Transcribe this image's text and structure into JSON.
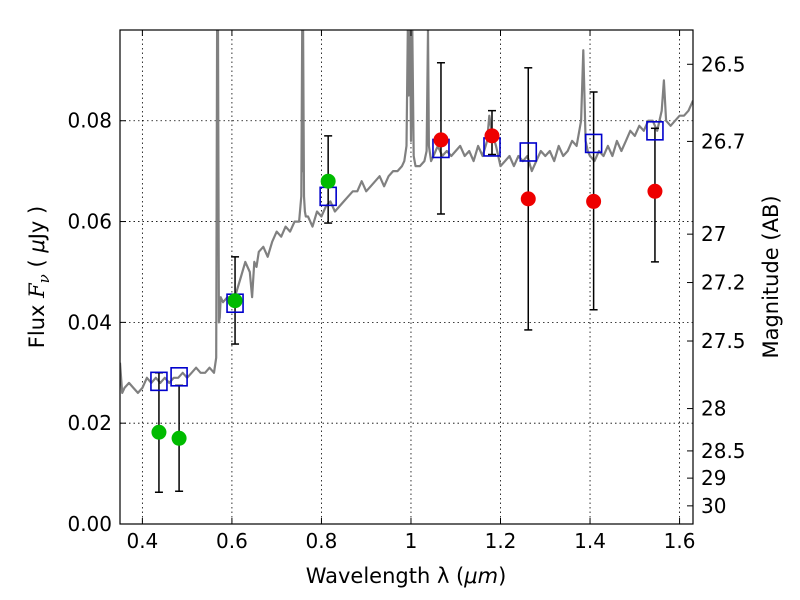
{
  "chart_data": {
    "type": "scatter",
    "xlabel_prefix": "Wavelength  λ (",
    "xlabel_unit": "μm",
    "xlabel_suffix": ")",
    "ylabel_prefix": "Flux  ",
    "ylabel_symbol": "F",
    "ylabel_sub": "ν",
    "ylabel_mid": "  ( ",
    "ylabel_mu": "μ",
    "ylabel_suffix": "Jy )",
    "y2label": "Magnitude (AB)",
    "xlim": [
      0.35,
      1.63
    ],
    "ylim": [
      0.0,
      0.098
    ],
    "xticks": [
      0.4,
      0.6,
      0.8,
      1.0,
      1.2,
      1.4,
      1.6
    ],
    "xtick_labels": [
      "0.4",
      "0.6",
      "0.8",
      "1",
      "1.2",
      "1.4",
      "1.6"
    ],
    "yticks": [
      0.0,
      0.02,
      0.04,
      0.06,
      0.08
    ],
    "ytick_labels": [
      "0.00",
      "0.02",
      "0.04",
      "0.06",
      "0.08"
    ],
    "y2ticks": [
      {
        "label": "26.5",
        "flux": 0.0912
      },
      {
        "label": "26.7",
        "flux": 0.0759
      },
      {
        "label": "27",
        "flux": 0.0575
      },
      {
        "label": "27.2",
        "flux": 0.0479
      },
      {
        "label": "27.5",
        "flux": 0.0363
      },
      {
        "label": "28",
        "flux": 0.0229
      },
      {
        "label": "28.5",
        "flux": 0.0145
      },
      {
        "label": "29",
        "flux": 0.0091
      },
      {
        "label": "30",
        "flux": 0.0036
      }
    ],
    "grid": true,
    "colors": {
      "spectrum": "#808080",
      "green": "#00bb00",
      "red": "#ee0000",
      "model": "#0000cc",
      "error": "#000000"
    },
    "model_spectrum": {
      "x": [
        0.35,
        0.355,
        0.36,
        0.37,
        0.38,
        0.39,
        0.4,
        0.41,
        0.42,
        0.43,
        0.44,
        0.45,
        0.46,
        0.47,
        0.48,
        0.49,
        0.5,
        0.51,
        0.52,
        0.53,
        0.54,
        0.55,
        0.56,
        0.565,
        0.567,
        0.568,
        0.569,
        0.571,
        0.573,
        0.575,
        0.58,
        0.59,
        0.6,
        0.61,
        0.62,
        0.63,
        0.64,
        0.645,
        0.65,
        0.655,
        0.66,
        0.67,
        0.68,
        0.69,
        0.7,
        0.71,
        0.72,
        0.73,
        0.74,
        0.75,
        0.755,
        0.757,
        0.758,
        0.759,
        0.761,
        0.763,
        0.765,
        0.77,
        0.78,
        0.79,
        0.8,
        0.81,
        0.82,
        0.83,
        0.84,
        0.85,
        0.86,
        0.87,
        0.88,
        0.89,
        0.9,
        0.91,
        0.92,
        0.93,
        0.94,
        0.95,
        0.96,
        0.97,
        0.98,
        0.985,
        0.99,
        0.993,
        0.995,
        0.998,
        1.0,
        1.003,
        1.006,
        1.01,
        1.02,
        1.03,
        1.035,
        1.038,
        1.04,
        1.045,
        1.05,
        1.06,
        1.07,
        1.08,
        1.09,
        1.1,
        1.11,
        1.12,
        1.13,
        1.14,
        1.15,
        1.16,
        1.17,
        1.175,
        1.18,
        1.19,
        1.2,
        1.21,
        1.22,
        1.23,
        1.24,
        1.25,
        1.26,
        1.27,
        1.28,
        1.29,
        1.3,
        1.31,
        1.32,
        1.33,
        1.34,
        1.35,
        1.36,
        1.37,
        1.38,
        1.385,
        1.39,
        1.395,
        1.4,
        1.41,
        1.42,
        1.43,
        1.44,
        1.45,
        1.46,
        1.47,
        1.48,
        1.49,
        1.5,
        1.51,
        1.52,
        1.53,
        1.54,
        1.55,
        1.56,
        1.565,
        1.57,
        1.58,
        1.59,
        1.6,
        1.61,
        1.62,
        1.63
      ],
      "y": [
        0.032,
        0.026,
        0.027,
        0.028,
        0.027,
        0.026,
        0.027,
        0.029,
        0.028,
        0.029,
        0.028,
        0.029,
        0.028,
        0.029,
        0.029,
        0.03,
        0.029,
        0.03,
        0.031,
        0.03,
        0.03,
        0.031,
        0.03,
        0.033,
        0.098,
        0.06,
        0.098,
        0.04,
        0.041,
        0.045,
        0.044,
        0.045,
        0.045,
        0.046,
        0.049,
        0.052,
        0.05,
        0.045,
        0.052,
        0.051,
        0.054,
        0.055,
        0.053,
        0.056,
        0.058,
        0.057,
        0.059,
        0.058,
        0.06,
        0.06,
        0.065,
        0.098,
        0.07,
        0.098,
        0.065,
        0.062,
        0.061,
        0.061,
        0.059,
        0.062,
        0.061,
        0.063,
        0.064,
        0.062,
        0.063,
        0.064,
        0.065,
        0.066,
        0.066,
        0.068,
        0.066,
        0.067,
        0.068,
        0.069,
        0.067,
        0.069,
        0.07,
        0.07,
        0.071,
        0.072,
        0.075,
        0.098,
        0.085,
        0.098,
        0.076,
        0.098,
        0.073,
        0.071,
        0.071,
        0.072,
        0.074,
        0.098,
        0.075,
        0.072,
        0.073,
        0.075,
        0.073,
        0.074,
        0.073,
        0.074,
        0.075,
        0.073,
        0.074,
        0.072,
        0.075,
        0.073,
        0.076,
        0.081,
        0.078,
        0.075,
        0.071,
        0.072,
        0.073,
        0.071,
        0.073,
        0.072,
        0.073,
        0.07,
        0.072,
        0.074,
        0.073,
        0.074,
        0.072,
        0.075,
        0.073,
        0.074,
        0.076,
        0.075,
        0.08,
        0.094,
        0.076,
        0.074,
        0.073,
        0.072,
        0.074,
        0.073,
        0.075,
        0.073,
        0.076,
        0.074,
        0.076,
        0.078,
        0.077,
        0.079,
        0.078,
        0.08,
        0.08,
        0.078,
        0.082,
        0.088,
        0.08,
        0.079,
        0.08,
        0.081,
        0.081,
        0.082,
        0.084
      ]
    },
    "series": [
      {
        "name": "green-photometry",
        "marker": "circle",
        "color_key": "green",
        "points": [
          {
            "x": 0.437,
            "y": 0.0182,
            "ylo": 0.0063,
            "yhi": 0.03
          },
          {
            "x": 0.482,
            "y": 0.017,
            "ylo": 0.0065,
            "yhi": 0.0275
          },
          {
            "x": 0.607,
            "y": 0.0443,
            "ylo": 0.0357,
            "yhi": 0.053
          },
          {
            "x": 0.815,
            "y": 0.068,
            "ylo": 0.0597,
            "yhi": 0.077
          }
        ]
      },
      {
        "name": "red-photometry",
        "marker": "circle",
        "color_key": "red",
        "points": [
          {
            "x": 1.067,
            "y": 0.0762,
            "ylo": 0.0615,
            "yhi": 0.0915
          },
          {
            "x": 1.181,
            "y": 0.077,
            "ylo": 0.0733,
            "yhi": 0.082
          },
          {
            "x": 1.262,
            "y": 0.0645,
            "ylo": 0.0385,
            "yhi": 0.0905
          },
          {
            "x": 1.408,
            "y": 0.064,
            "ylo": 0.0425,
            "yhi": 0.0857
          },
          {
            "x": 1.545,
            "y": 0.066,
            "ylo": 0.052,
            "yhi": 0.0785
          }
        ]
      },
      {
        "name": "model-fluxes",
        "marker": "open-square",
        "color_key": "model",
        "points": [
          {
            "x": 0.437,
            "y": 0.0283
          },
          {
            "x": 0.482,
            "y": 0.0292
          },
          {
            "x": 0.607,
            "y": 0.0438
          },
          {
            "x": 0.815,
            "y": 0.065
          },
          {
            "x": 1.067,
            "y": 0.0745
          },
          {
            "x": 1.181,
            "y": 0.0748
          },
          {
            "x": 1.262,
            "y": 0.0738
          },
          {
            "x": 1.408,
            "y": 0.0755
          },
          {
            "x": 1.545,
            "y": 0.078
          }
        ]
      }
    ]
  }
}
